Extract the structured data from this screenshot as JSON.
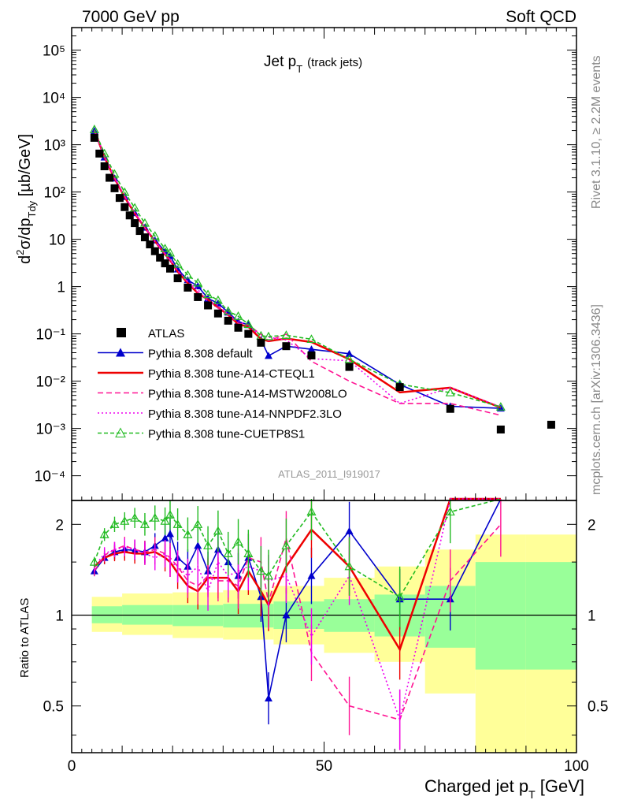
{
  "header": {
    "left": "7000 GeV pp",
    "right": "Soft QCD"
  },
  "side_text": {
    "top": "Rivet 3.1.10, ≥ 2.2M events",
    "bottom": "mcplots.cern.ch [arXiv:1306.3436]"
  },
  "plot_title": {
    "main": "Jet p",
    "sub": "T",
    "extra": "(track jets)"
  },
  "analysis_id": "ATLAS_2011_I919017",
  "ylabel_main": "d²σ/dp_Tdy [µb/GeV]",
  "ylabel_ratio": "Ratio to ATLAS",
  "xlabel": "Charged jet p_T [GeV]",
  "legend": [
    {
      "label": "ATLAS",
      "color": "#000000",
      "style": "square"
    },
    {
      "label": "Pythia 8.308 default",
      "color": "#0000cc",
      "style": "line-triangle"
    },
    {
      "label": "Pythia 8.308 tune-A14-CTEQL1",
      "color": "#ee0000",
      "style": "solid"
    },
    {
      "label": "Pythia 8.308 tune-A14-MSTW2008LO",
      "color": "#ff1493",
      "style": "dashed"
    },
    {
      "label": "Pythia 8.308 tune-A14-NNPDF2.3LO",
      "color": "#ee00ee",
      "style": "dotted"
    },
    {
      "label": "Pythia 8.308 tune-CUETP8S1",
      "color": "#22bb22",
      "style": "dashed-open-triangle"
    }
  ],
  "main_y_ticks": [
    "10⁻⁴",
    "10⁻³",
    "10⁻²",
    "10⁻¹",
    "1",
    "10",
    "10²",
    "10³",
    "10⁴",
    "10⁵"
  ],
  "ratio_y_ticks": [
    "0.5",
    "1",
    "2"
  ],
  "x_ticks": [
    "0",
    "50",
    "100"
  ],
  "colors": {
    "band_outer": "#ffff99",
    "band_inner": "#99ff99",
    "axis": "#000000"
  },
  "chart_data": {
    "type": "scatter",
    "xlim": [
      0,
      100
    ],
    "ylim": [
      3e-05,
      300000
    ],
    "ylog": true,
    "ratio_ylim": [
      0.35,
      2.4
    ],
    "ratio_ylog": true,
    "x": [
      4.5,
      5.5,
      6.5,
      7.5,
      8.5,
      9.5,
      10.5,
      11.5,
      12.5,
      13.5,
      14.5,
      15.5,
      16.5,
      17.5,
      18.5,
      19.5,
      21,
      23,
      25,
      27,
      29,
      31,
      33,
      35,
      37.5,
      42.5,
      47.5,
      55,
      65,
      75,
      85,
      95
    ],
    "atlas": [
      1400,
      650,
      350,
      200,
      120,
      75,
      48,
      32,
      22,
      15,
      11,
      7.8,
      5.6,
      4.1,
      3.1,
      2.4,
      1.5,
      0.95,
      0.6,
      0.4,
      0.27,
      0.19,
      0.135,
      0.1,
      0.065,
      0.055,
      0.035,
      0.02,
      0.0075,
      0.0026,
      0.00095,
      0.0012
    ],
    "ratio_band": {
      "edges": [
        4,
        10,
        20,
        30,
        40,
        50,
        60,
        70,
        80,
        90,
        100
      ],
      "inner": [
        [
          0.94,
          1.07
        ],
        [
          0.93,
          1.08
        ],
        [
          0.92,
          1.08
        ],
        [
          0.91,
          1.09
        ],
        [
          0.9,
          1.11
        ],
        [
          0.88,
          1.13
        ],
        [
          0.85,
          1.17
        ],
        [
          0.78,
          1.25
        ],
        [
          0.66,
          1.5
        ],
        [
          0.66,
          1.5
        ]
      ],
      "outer": [
        [
          0.88,
          1.15
        ],
        [
          0.86,
          1.18
        ],
        [
          0.84,
          1.19
        ],
        [
          0.83,
          1.21
        ],
        [
          0.8,
          1.25
        ],
        [
          0.75,
          1.33
        ],
        [
          0.7,
          1.45
        ],
        [
          0.55,
          1.65
        ],
        [
          0.35,
          1.85
        ],
        [
          0.35,
          1.85
        ]
      ]
    },
    "series": [
      {
        "name": "Pythia 8.308 default",
        "color": "#0000cc",
        "x": [
          4.5,
          6.5,
          8.5,
          10.5,
          12.5,
          14.5,
          16.5,
          18.5,
          19.5,
          21,
          23,
          25,
          27,
          29,
          31,
          33,
          35,
          37.5,
          39,
          42.5,
          47.5,
          55,
          65,
          75,
          85
        ],
        "ratio": [
          1.4,
          1.55,
          1.62,
          1.65,
          1.64,
          1.62,
          1.7,
          1.8,
          1.86,
          1.55,
          1.45,
          1.7,
          1.4,
          1.65,
          1.5,
          1.35,
          1.55,
          1.15,
          0.53,
          1.0,
          1.35,
          1.9,
          1.13,
          1.13,
          2.8
        ]
      },
      {
        "name": "Pythia 8.308 tune-A14-CTEQL1",
        "color": "#ee0000",
        "x": [
          4.5,
          6.5,
          8.5,
          10.5,
          12.5,
          14.5,
          16.5,
          18.5,
          19.5,
          21,
          23,
          25,
          27,
          29,
          31,
          33,
          35,
          37.5,
          39,
          42.5,
          47.5,
          55,
          65,
          75,
          85
        ],
        "ratio": [
          1.45,
          1.55,
          1.6,
          1.62,
          1.6,
          1.6,
          1.62,
          1.55,
          1.5,
          1.38,
          1.25,
          1.2,
          1.33,
          1.33,
          1.33,
          1.2,
          1.4,
          1.2,
          1.08,
          1.45,
          1.92,
          1.45,
          0.77,
          2.8,
          2.9
        ]
      },
      {
        "name": "Pythia 8.308 tune-A14-MSTW2008LO",
        "color": "#ff1493",
        "x": [
          4.5,
          6.5,
          8.5,
          10.5,
          12.5,
          14.5,
          16.5,
          18.5,
          19.5,
          21,
          23,
          25,
          27,
          29,
          31,
          33,
          35,
          37.5,
          39,
          42.5,
          47.5,
          55,
          65,
          75,
          85
        ],
        "ratio": [
          1.4,
          1.58,
          1.65,
          1.7,
          1.65,
          1.62,
          1.65,
          1.6,
          1.55,
          1.45,
          1.3,
          1.25,
          1.35,
          1.3,
          1.3,
          1.25,
          1.55,
          1.5,
          1.1,
          1.8,
          0.75,
          0.5,
          0.45,
          1.3,
          2.0
        ]
      },
      {
        "name": "Pythia 8.308 tune-A14-NNPDF2.3LO",
        "color": "#ee00ee",
        "x": [
          4.5,
          6.5,
          8.5,
          10.5,
          12.5,
          14.5,
          16.5,
          18.5,
          19.5,
          21,
          23,
          25,
          27,
          29,
          31,
          33,
          35,
          37.5,
          39,
          42.5,
          47.5,
          55,
          65,
          75,
          85
        ],
        "ratio": [
          1.45,
          1.6,
          1.65,
          1.68,
          1.65,
          1.6,
          1.55,
          1.6,
          1.5,
          1.45,
          1.35,
          1.45,
          1.2,
          1.5,
          1.35,
          1.4,
          1.45,
          1.4,
          1.3,
          1.35,
          0.85,
          1.35,
          0.45,
          2.8,
          3.0
        ]
      },
      {
        "name": "Pythia 8.308 tune-CUETP8S1",
        "color": "#22bb22",
        "x": [
          4.5,
          6.5,
          8.5,
          10.5,
          12.5,
          14.5,
          16.5,
          18.5,
          19.5,
          21,
          23,
          25,
          27,
          29,
          31,
          33,
          35,
          37.5,
          39,
          42.5,
          47.5,
          55,
          65,
          75,
          85
        ],
        "ratio": [
          1.5,
          1.85,
          2.0,
          2.05,
          2.1,
          2.0,
          2.1,
          2.05,
          2.15,
          2.0,
          1.85,
          2.0,
          1.7,
          1.9,
          1.6,
          1.75,
          1.6,
          1.4,
          1.35,
          1.7,
          2.2,
          1.45,
          1.15,
          2.2,
          3.0
        ]
      }
    ]
  }
}
